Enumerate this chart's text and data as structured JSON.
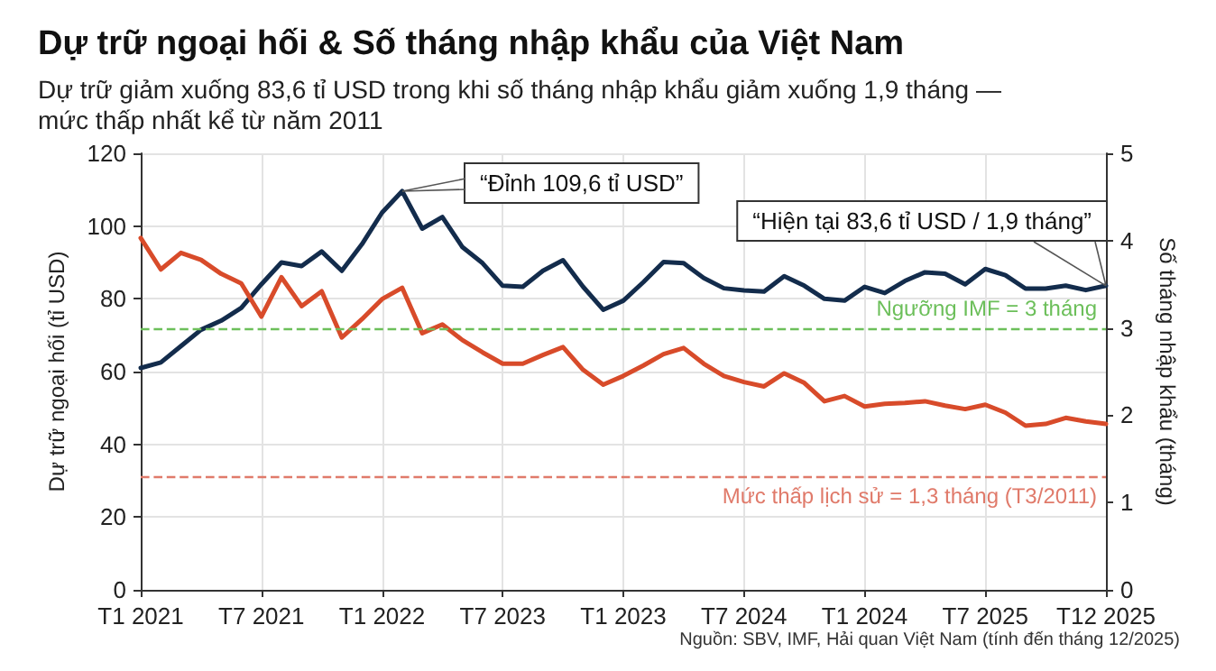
{
  "chart_data": {
    "type": "line",
    "title": "Dự trữ ngoại hối & Số tháng nhập khẩu của Việt Nam",
    "subtitle": "Dự trữ giảm xuống 83,6 tỉ USD trong khi số tháng nhập khẩu giảm xuống 1,9 tháng — mức thấp nhất kể từ năm 2011",
    "ylabel": "Dự trữ ngoại hối (tỉ USD)",
    "y2label": "Số tháng nhập khẩu (tháng)",
    "categories": [
      "T1 2021",
      null,
      null,
      null,
      null,
      null,
      "T7 2021",
      null,
      null,
      null,
      null,
      null,
      "T1 2022",
      null,
      null,
      null,
      null,
      null,
      "T7 2023",
      null,
      null,
      null,
      null,
      null,
      "T1 2023",
      null,
      null,
      null,
      null,
      null,
      "T7 2024",
      null,
      null,
      null,
      null,
      null,
      "T1 2024",
      null,
      null,
      null,
      null,
      null,
      "T7 2025",
      null,
      null,
      null,
      null,
      null,
      "T12 2025"
    ],
    "series": [
      {
        "color": "#132c4c",
        "values": [
          61,
          62.5,
          67,
          71.5,
          74,
          77.5,
          84,
          90,
          89,
          93,
          87.7,
          95,
          103.7,
          109.6,
          99.3,
          102.5,
          94.2,
          89.8,
          83.6,
          83.3,
          87.7,
          90.6,
          83.3,
          77,
          79.5,
          84.6,
          90.1,
          89.8,
          85.7,
          82.9,
          82.3,
          82,
          86.2,
          83.6,
          80,
          79.5,
          83.3,
          81.6,
          84.9,
          87.3,
          86.9,
          84,
          88.2,
          86.5,
          82.8,
          82.8,
          83.6,
          82.4,
          83.6
        ]
      },
      {
        "color": "#d84b2a",
        "axis": "y2",
        "values": [
          4.03,
          3.67,
          3.86,
          3.78,
          3.62,
          3.51,
          3.13,
          3.58,
          3.25,
          3.42,
          2.89,
          3.1,
          3.33,
          3.46,
          2.94,
          3.04,
          2.86,
          2.72,
          2.59,
          2.59,
          2.69,
          2.78,
          2.52,
          2.35,
          2.45,
          2.57,
          2.7,
          2.77,
          2.59,
          2.45,
          2.38,
          2.33,
          2.48,
          2.37,
          2.16,
          2.22,
          2.1,
          2.13,
          2.14,
          2.16,
          2.11,
          2.07,
          2.12,
          2.03,
          1.88,
          1.9,
          1.97,
          1.93,
          1.9
        ]
      }
    ],
    "ylim": [
      0,
      120
    ],
    "yticks": [
      0,
      20,
      40,
      60,
      80,
      100,
      120
    ],
    "y2lim": [
      0,
      5
    ],
    "y2ticks": [
      0,
      1,
      2,
      3,
      4,
      5
    ],
    "ref_lines": [
      {
        "axis": "y2",
        "value": 3,
        "label": "Ngưỡng IMF = 3 tháng",
        "color": "#6cbf5a",
        "line_style": "dashed"
      },
      {
        "axis": "y2",
        "value": 1.3,
        "label": "Mức thấp lịch sử = 1,3 tháng (T3/2011)",
        "color": "#e07a6a",
        "line_style": "dashed"
      }
    ],
    "annotations": [
      "“Đỉnh 109,6 tỉ USD”",
      {
        "text": "“Hiện tại 83,6 tỉ USD / 1,9 tháng”",
        "x": "T12 2025",
        "y": 83.6
      },
      "Nguồn: SBV, IMF, Hải quan Việt Nam (tính đến tháng 12/2025)"
    ],
    "grid": true,
    "marker": "none",
    "line_style": "solid"
  }
}
